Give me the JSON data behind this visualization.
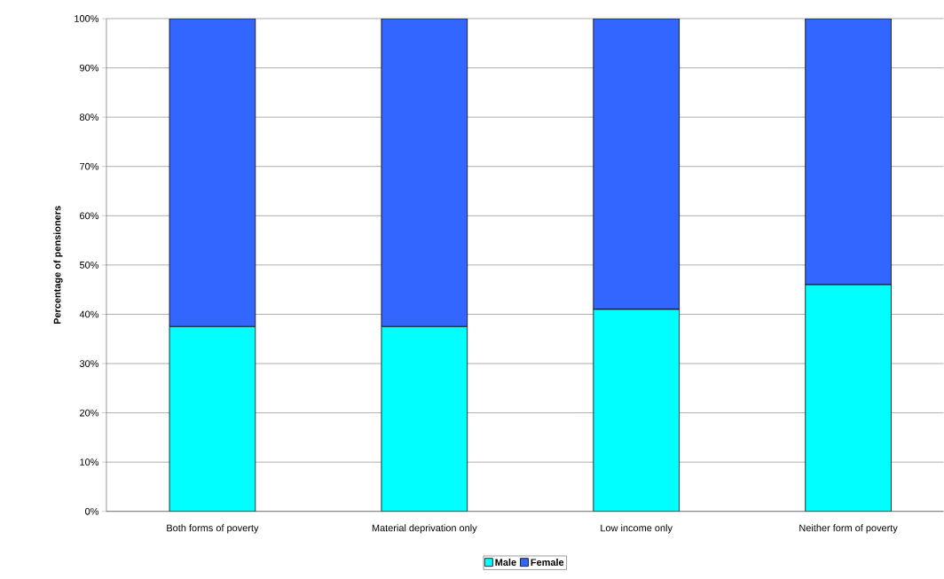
{
  "chart_data": {
    "type": "bar",
    "stacked": true,
    "ylabel": "Percentage of pensioners",
    "categories": [
      "Both forms of poverty",
      "Material deprivation only",
      "Low income only",
      "Neither form of poverty"
    ],
    "series": [
      {
        "name": "Male",
        "color": "#00ffff",
        "values": [
          37.5,
          37.5,
          41,
          46
        ]
      },
      {
        "name": "Female",
        "color": "#3366ff",
        "values": [
          62.5,
          62.5,
          59,
          54
        ]
      }
    ],
    "ylim": [
      0,
      100
    ],
    "yticks": [
      {
        "value": 0,
        "label": "0%"
      },
      {
        "value": 10,
        "label": "10%"
      },
      {
        "value": 20,
        "label": "20%"
      },
      {
        "value": 30,
        "label": "30%"
      },
      {
        "value": 40,
        "label": "40%"
      },
      {
        "value": 50,
        "label": "50%"
      },
      {
        "value": 60,
        "label": "60%"
      },
      {
        "value": 70,
        "label": "70%"
      },
      {
        "value": 80,
        "label": "80%"
      },
      {
        "value": 90,
        "label": "90%"
      },
      {
        "value": 100,
        "label": "100%"
      }
    ],
    "grid": "y",
    "legend": "bottom"
  }
}
